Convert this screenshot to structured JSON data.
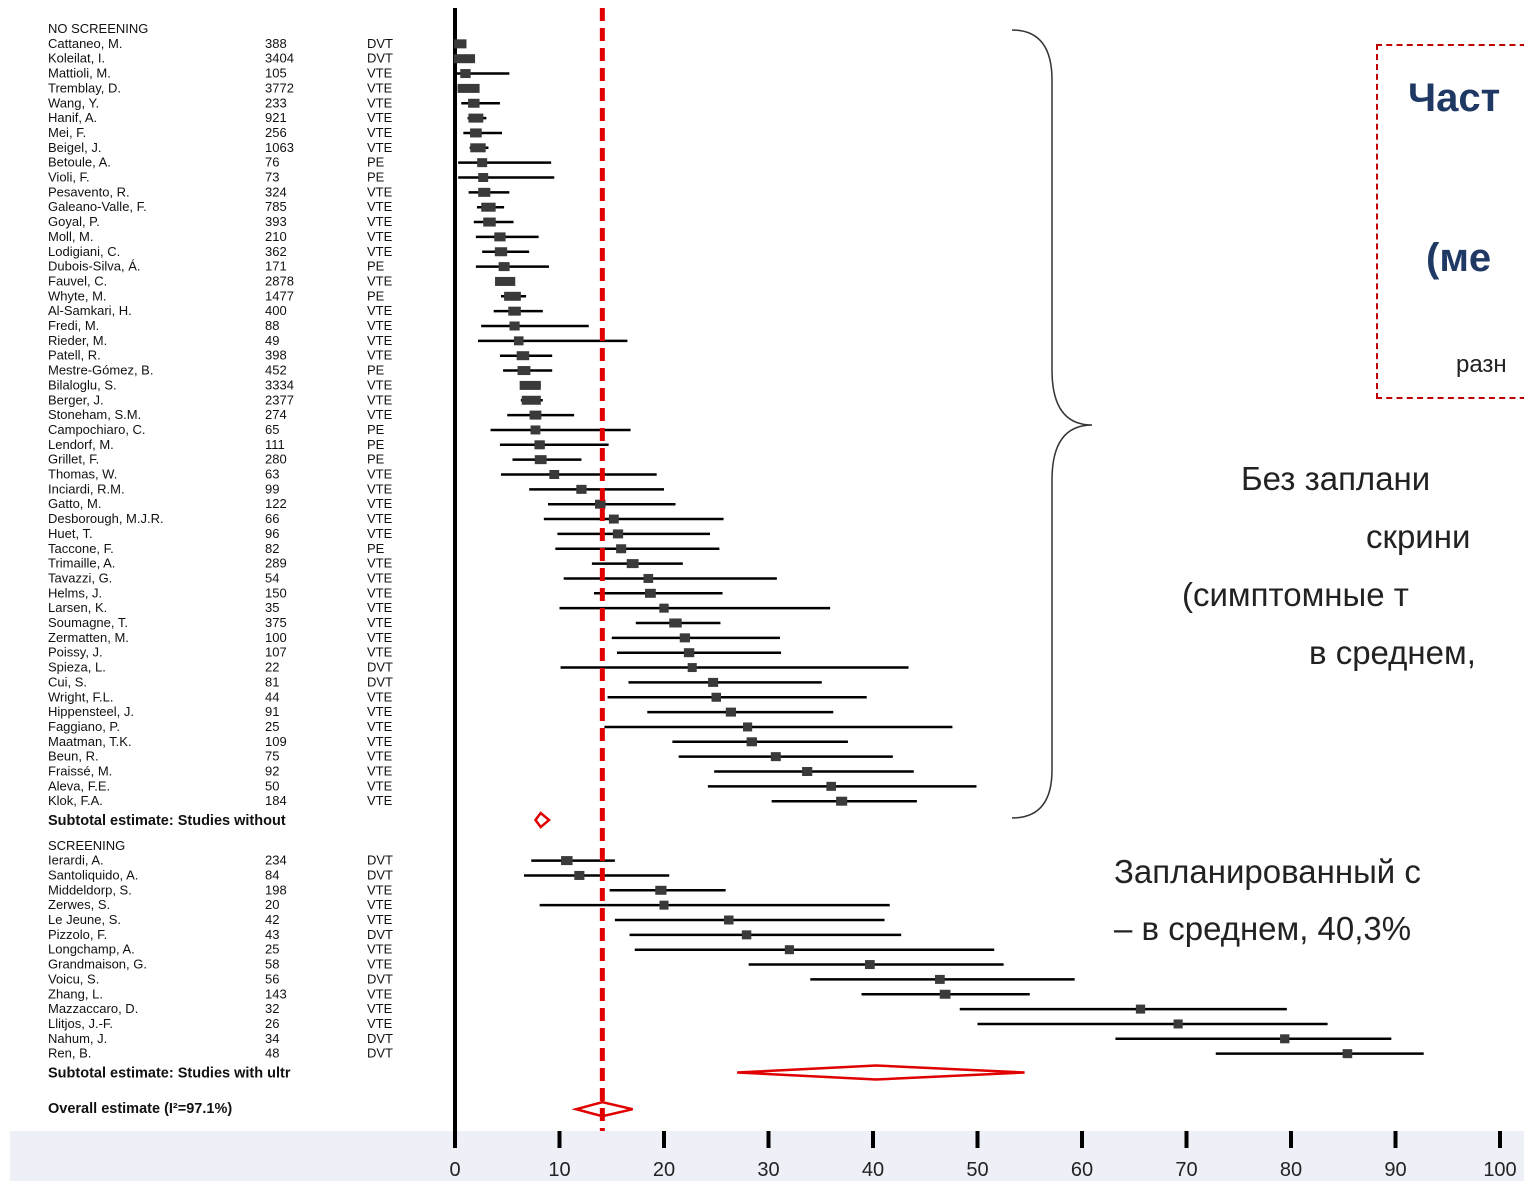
{
  "chart_data": {
    "type": "forest",
    "xlim": [
      0,
      100
    ],
    "x_ticks": [
      0,
      10,
      20,
      30,
      40,
      50,
      60,
      70,
      80,
      90,
      100
    ],
    "x_tick_labels": [
      "0",
      "10",
      "20",
      "30",
      "40",
      "50",
      "60",
      "70",
      "80",
      "90",
      "100"
    ],
    "reference_line": 14.1,
    "groups": [
      {
        "label": "NO SCREENING",
        "subtotal_label": "Subtotal estimate: Studies without",
        "subtotal": {
          "est": 8.2,
          "lo": 7.7,
          "hi": 9.0
        },
        "studies": [
          {
            "name": "Cattaneo, M.",
            "n": "388",
            "type": "DVT",
            "est": 0.5,
            "lo": 0.0,
            "hi": 1.0
          },
          {
            "name": "Koleilat, I.",
            "n": "3404",
            "type": "DVT",
            "est": 0.9,
            "lo": 0.6,
            "hi": 1.3
          },
          {
            "name": "Mattioli, M.",
            "n": "105",
            "type": "VTE",
            "est": 1.0,
            "lo": 0.0,
            "hi": 5.2
          },
          {
            "name": "Tremblay, D.",
            "n": "3772",
            "type": "VTE",
            "est": 1.3,
            "lo": 0.8,
            "hi": 1.8
          },
          {
            "name": "Wang, Y.",
            "n": "233",
            "type": "VTE",
            "est": 1.8,
            "lo": 0.6,
            "hi": 4.3
          },
          {
            "name": "Hanif, A.",
            "n": "921",
            "type": "VTE",
            "est": 2.0,
            "lo": 1.2,
            "hi": 3.0
          },
          {
            "name": "Mei, F.",
            "n": "256",
            "type": "VTE",
            "est": 2.0,
            "lo": 0.8,
            "hi": 4.5
          },
          {
            "name": "Beigel, J.",
            "n": "1063",
            "type": "VTE",
            "est": 2.2,
            "lo": 1.4,
            "hi": 3.2
          },
          {
            "name": "Betoule, A.",
            "n": "76",
            "type": "PE",
            "est": 2.6,
            "lo": 0.3,
            "hi": 9.2
          },
          {
            "name": "Violi, F.",
            "n": "73",
            "type": "PE",
            "est": 2.7,
            "lo": 0.3,
            "hi": 9.5
          },
          {
            "name": "Pesavento, R.",
            "n": "324",
            "type": "VTE",
            "est": 2.8,
            "lo": 1.3,
            "hi": 5.2
          },
          {
            "name": "Galeano-Valle, F.",
            "n": "785",
            "type": "VTE",
            "est": 3.2,
            "lo": 2.1,
            "hi": 4.7
          },
          {
            "name": "Goyal, P.",
            "n": "393",
            "type": "VTE",
            "est": 3.3,
            "lo": 1.8,
            "hi": 5.6
          },
          {
            "name": "Moll, M.",
            "n": "210",
            "type": "VTE",
            "est": 4.3,
            "lo": 2.0,
            "hi": 8.0
          },
          {
            "name": "Lodigiani, C.",
            "n": "362",
            "type": "VTE",
            "est": 4.4,
            "lo": 2.6,
            "hi": 7.1
          },
          {
            "name": "Dubois-Silva, Á.",
            "n": "171",
            "type": "PE",
            "est": 4.7,
            "lo": 2.0,
            "hi": 9.0
          },
          {
            "name": "Fauvel, C.",
            "n": "2878",
            "type": "VTE",
            "est": 4.8,
            "lo": 4.1,
            "hi": 5.7
          },
          {
            "name": "Whyte, M.",
            "n": "1477",
            "type": "PE",
            "est": 5.5,
            "lo": 4.4,
            "hi": 6.8
          },
          {
            "name": "Al-Samkari, H.",
            "n": "400",
            "type": "VTE",
            "est": 5.7,
            "lo": 3.7,
            "hi": 8.4
          },
          {
            "name": "Fredi, M.",
            "n": "88",
            "type": "VTE",
            "est": 5.7,
            "lo": 2.5,
            "hi": 12.8
          },
          {
            "name": "Rieder, M.",
            "n": "49",
            "type": "VTE",
            "est": 6.1,
            "lo": 2.2,
            "hi": 16.5
          },
          {
            "name": "Patell, R.",
            "n": "398",
            "type": "VTE",
            "est": 6.5,
            "lo": 4.3,
            "hi": 9.3
          },
          {
            "name": "Mestre-Gómez, B.",
            "n": "452",
            "type": "PE",
            "est": 6.6,
            "lo": 4.6,
            "hi": 9.3
          },
          {
            "name": "Bilaloglu, S.",
            "n": "3334",
            "type": "VTE",
            "est": 7.2,
            "lo": 6.4,
            "hi": 8.2
          },
          {
            "name": "Berger, J.",
            "n": "2377",
            "type": "VTE",
            "est": 7.3,
            "lo": 6.3,
            "hi": 8.4
          },
          {
            "name": "Stoneham, S.M.",
            "n": "274",
            "type": "VTE",
            "est": 7.7,
            "lo": 5.0,
            "hi": 11.4
          },
          {
            "name": "Campochiaro, C.",
            "n": "65",
            "type": "PE",
            "est": 7.7,
            "lo": 3.4,
            "hi": 16.8
          },
          {
            "name": "Lendorf, M.",
            "n": "111",
            "type": "PE",
            "est": 8.1,
            "lo": 4.3,
            "hi": 14.7
          },
          {
            "name": "Grillet, F.",
            "n": "280",
            "type": "PE",
            "est": 8.2,
            "lo": 5.5,
            "hi": 12.1
          },
          {
            "name": "Thomas, W.",
            "n": "63",
            "type": "VTE",
            "est": 9.5,
            "lo": 4.4,
            "hi": 19.3
          },
          {
            "name": "Inciardi, R.M.",
            "n": "99",
            "type": "VTE",
            "est": 12.1,
            "lo": 7.1,
            "hi": 20.0
          },
          {
            "name": "Gatto, M.",
            "n": "122",
            "type": "VTE",
            "est": 13.9,
            "lo": 8.9,
            "hi": 21.1
          },
          {
            "name": "Desborough, M.J.R.",
            "n": "66",
            "type": "VTE",
            "est": 15.2,
            "lo": 8.5,
            "hi": 25.7
          },
          {
            "name": "Huet, T.",
            "n": "96",
            "type": "VTE",
            "est": 15.6,
            "lo": 9.8,
            "hi": 24.4
          },
          {
            "name": "Taccone, F.",
            "n": "82",
            "type": "PE",
            "est": 15.9,
            "lo": 9.6,
            "hi": 25.3
          },
          {
            "name": "Trimaille, A.",
            "n": "289",
            "type": "VTE",
            "est": 17.0,
            "lo": 13.1,
            "hi": 21.8
          },
          {
            "name": "Tavazzi, G.",
            "n": "54",
            "type": "VTE",
            "est": 18.5,
            "lo": 10.4,
            "hi": 30.8
          },
          {
            "name": "Helms, J.",
            "n": "150",
            "type": "VTE",
            "est": 18.7,
            "lo": 13.3,
            "hi": 25.6
          },
          {
            "name": "Larsen, K.",
            "n": "35",
            "type": "VTE",
            "est": 20.0,
            "lo": 10.0,
            "hi": 35.9
          },
          {
            "name": "Soumagne, T.",
            "n": "375",
            "type": "VTE",
            "est": 21.1,
            "lo": 17.3,
            "hi": 25.4
          },
          {
            "name": "Zermatten, M.",
            "n": "100",
            "type": "VTE",
            "est": 22.0,
            "lo": 15.0,
            "hi": 31.1
          },
          {
            "name": "Poissy, J.",
            "n": "107",
            "type": "VTE",
            "est": 22.4,
            "lo": 15.5,
            "hi": 31.2
          },
          {
            "name": "Spieza, L.",
            "n": "22",
            "type": "DVT",
            "est": 22.7,
            "lo": 10.1,
            "hi": 43.4
          },
          {
            "name": "Cui, S.",
            "n": "81",
            "type": "DVT",
            "est": 24.7,
            "lo": 16.6,
            "hi": 35.1
          },
          {
            "name": "Wright, F.L.",
            "n": "44",
            "type": "VTE",
            "est": 25.0,
            "lo": 14.6,
            "hi": 39.4
          },
          {
            "name": "Hippensteel, J.",
            "n": "91",
            "type": "VTE",
            "est": 26.4,
            "lo": 18.4,
            "hi": 36.2
          },
          {
            "name": "Faggiano, P.",
            "n": "25",
            "type": "VTE",
            "est": 28.0,
            "lo": 14.3,
            "hi": 47.6
          },
          {
            "name": "Maatman, T.K.",
            "n": "109",
            "type": "VTE",
            "est": 28.4,
            "lo": 20.8,
            "hi": 37.6
          },
          {
            "name": "Beun, R.",
            "n": "75",
            "type": "VTE",
            "est": 30.7,
            "lo": 21.4,
            "hi": 41.9
          },
          {
            "name": "Fraissé, M.",
            "n": "92",
            "type": "VTE",
            "est": 33.7,
            "lo": 24.8,
            "hi": 43.9
          },
          {
            "name": "Aleva, F.E.",
            "n": "50",
            "type": "VTE",
            "est": 36.0,
            "lo": 24.2,
            "hi": 49.9
          },
          {
            "name": "Klok, F.A.",
            "n": "184",
            "type": "VTE",
            "est": 37.0,
            "lo": 30.3,
            "hi": 44.2
          }
        ]
      },
      {
        "label": "SCREENING",
        "subtotal_label": "Subtotal estimate: Studies with ultr",
        "subtotal": {
          "est": 40.3,
          "lo": 27.0,
          "hi": 54.5
        },
        "studies": [
          {
            "name": "Ierardi, A.",
            "n": "234",
            "type": "DVT",
            "est": 10.7,
            "lo": 7.3,
            "hi": 15.3
          },
          {
            "name": "Santoliquido, A.",
            "n": "84",
            "type": "DVT",
            "est": 11.9,
            "lo": 6.6,
            "hi": 20.5
          },
          {
            "name": "Middeldorp, S.",
            "n": "198",
            "type": "VTE",
            "est": 19.7,
            "lo": 14.8,
            "hi": 25.9
          },
          {
            "name": "Zerwes, S.",
            "n": "20",
            "type": "VTE",
            "est": 20.0,
            "lo": 8.1,
            "hi": 41.6
          },
          {
            "name": "Le Jeune, S.",
            "n": "42",
            "type": "VTE",
            "est": 26.2,
            "lo": 15.3,
            "hi": 41.1
          },
          {
            "name": "Pizzolo, F.",
            "n": "43",
            "type": "DVT",
            "est": 27.9,
            "lo": 16.7,
            "hi": 42.7
          },
          {
            "name": "Longchamp, A.",
            "n": "25",
            "type": "VTE",
            "est": 32.0,
            "lo": 17.2,
            "hi": 51.6
          },
          {
            "name": "Grandmaison, G.",
            "n": "58",
            "type": "VTE",
            "est": 39.7,
            "lo": 28.1,
            "hi": 52.5
          },
          {
            "name": "Voicu, S.",
            "n": "56",
            "type": "DVT",
            "est": 46.4,
            "lo": 34.0,
            "hi": 59.3
          },
          {
            "name": "Zhang, L.",
            "n": "143",
            "type": "VTE",
            "est": 46.9,
            "lo": 38.9,
            "hi": 55.0
          },
          {
            "name": "Mazzaccaro, D.",
            "n": "32",
            "type": "VTE",
            "est": 65.6,
            "lo": 48.3,
            "hi": 79.6
          },
          {
            "name": "Llitjos, J.-F.",
            "n": "26",
            "type": "VTE",
            "est": 69.2,
            "lo": 50.0,
            "hi": 83.5
          },
          {
            "name": "Nahum, J.",
            "n": "34",
            "type": "DVT",
            "est": 79.4,
            "lo": 63.2,
            "hi": 89.6
          },
          {
            "name": "Ren, B.",
            "n": "48",
            "type": "DVT",
            "est": 85.4,
            "lo": 72.8,
            "hi": 92.7
          }
        ]
      }
    ],
    "overall": {
      "label": "Overall estimate (I²=97.1%)",
      "est": 14.1,
      "lo": 11.6,
      "hi": 17.0
    }
  },
  "annotations": {
    "box_line1": "Част",
    "box_line2": "(ме",
    "box_line3": "разн",
    "no_screening_lines": [
      "Без заплани",
      "скрини",
      "(симптомные т",
      "в среднем,"
    ],
    "screening_line1": "Запланированный с",
    "screening_line2": "– в среднем, 40,3%"
  },
  "colors": {
    "line": "#000000",
    "box": "#3a3a3a",
    "diamond": "#e00000",
    "reference": "#e00000",
    "axis_band": "#edf1f7",
    "box_title": "#1f3864"
  }
}
